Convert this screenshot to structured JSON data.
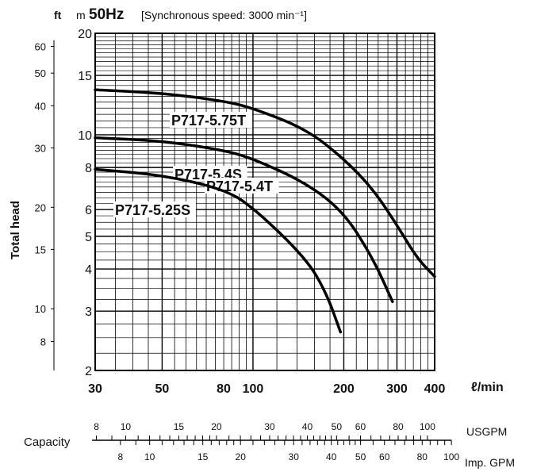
{
  "header": {
    "unit_ft": "ft",
    "unit_m": "m",
    "frequency": "50Hz",
    "speed_note": "[Synchronous speed:  3000 min⁻¹]"
  },
  "y_axis_label": "Total head",
  "x_unit": "ℓ/min",
  "chart_data": {
    "type": "line",
    "xscale": "log",
    "yscale": "log",
    "xlim": [
      30,
      400
    ],
    "ylim": [
      2,
      20
    ],
    "x_ticks": [
      30,
      50,
      80,
      100,
      200,
      300,
      400
    ],
    "y_ticks_m": [
      2,
      3,
      4,
      5,
      6,
      8,
      10,
      15,
      20
    ],
    "y_ticks_ft": [
      8,
      10,
      15,
      20,
      30,
      40,
      50,
      60
    ],
    "grid": true,
    "series": [
      {
        "name": "P717-5.75T",
        "x": [
          30,
          50,
          80,
          100,
          150,
          200,
          250,
          300,
          350,
          400
        ],
        "y": [
          13.6,
          13.3,
          12.6,
          12.0,
          10.4,
          8.5,
          6.9,
          5.4,
          4.3,
          3.8
        ]
      },
      {
        "name": "P717-5.4S",
        "x": [
          30,
          50,
          80,
          100,
          150,
          200,
          250,
          290
        ],
        "y": [
          9.8,
          9.6,
          9.0,
          8.5,
          7.2,
          5.9,
          4.3,
          3.2
        ]
      },
      {
        "name": "P717-5.4T",
        "x": [
          30,
          50,
          80,
          100,
          150,
          200,
          250,
          290
        ],
        "y": [
          9.8,
          9.6,
          9.0,
          8.5,
          7.2,
          5.9,
          4.3,
          3.2
        ]
      },
      {
        "name": "P717-5.25S",
        "x": [
          30,
          50,
          80,
          100,
          150,
          175,
          195
        ],
        "y": [
          7.9,
          7.6,
          6.9,
          6.1,
          4.3,
          3.4,
          2.6
        ]
      }
    ]
  },
  "capacity": {
    "label": "Capacity",
    "usgpm_label": "USGPM",
    "impgpm_label": "Imp. GPM",
    "usgpm_ticks": [
      8,
      10,
      15,
      20,
      30,
      40,
      50,
      60,
      80,
      100
    ],
    "impgpm_ticks": [
      8,
      10,
      15,
      20,
      30,
      40,
      50,
      60,
      80,
      100
    ]
  }
}
